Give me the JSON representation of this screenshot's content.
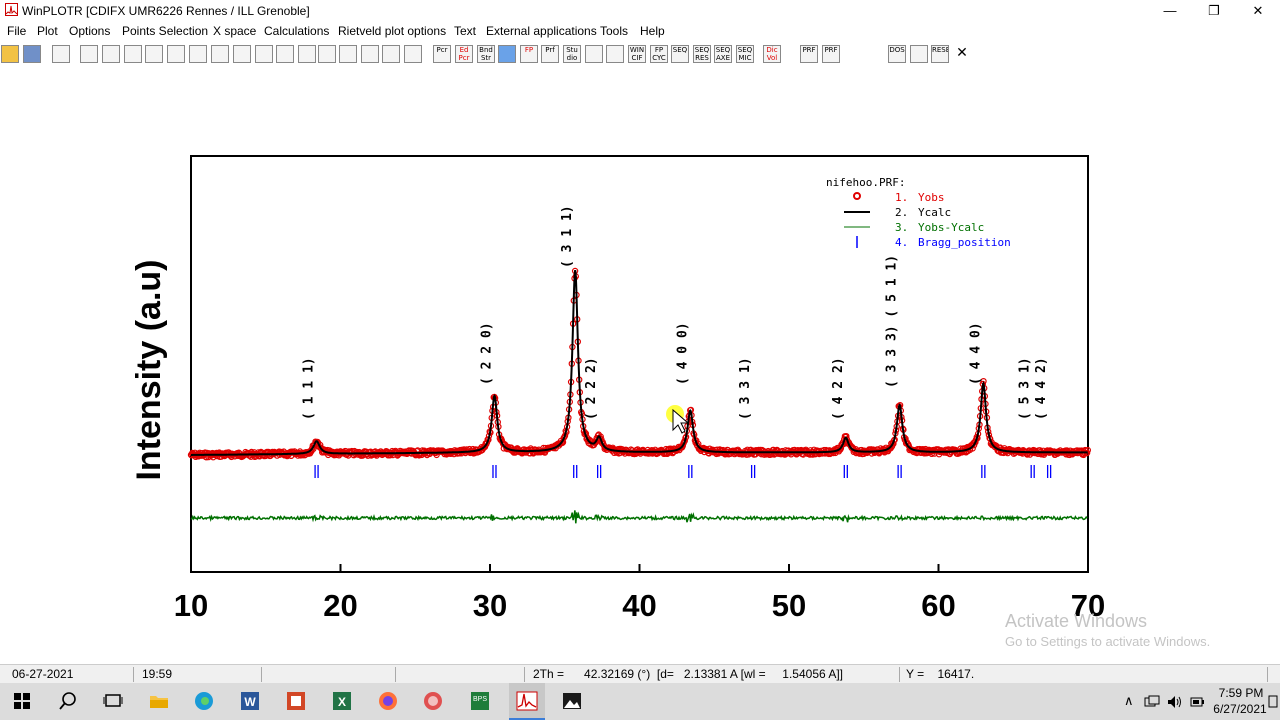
{
  "window": {
    "title": "WinPLOTR [CDIFX UMR6226 Rennes / ILL Grenoble]",
    "minimize_glyph": "—",
    "maximize_glyph": "❐",
    "close_glyph": "✕"
  },
  "menu": {
    "items": [
      "File",
      "Plot",
      "Options",
      "Points Selection",
      "X space",
      "Calculations",
      "Rietveld plot options",
      "Text",
      "External applications",
      "Tools",
      "Help"
    ]
  },
  "toolbar": {
    "labels": [
      "",
      "",
      "",
      "",
      "",
      "",
      "",
      "",
      "",
      "",
      "",
      "",
      "",
      "",
      "",
      "",
      "",
      "",
      "",
      "",
      "Pcr",
      "Ed Pcr",
      "Bnd Str",
      "",
      "FP",
      "Prf",
      "Stu dio",
      "",
      "",
      "WIN CIF",
      "FP CYC",
      "SEQ",
      "SEQ RES",
      "SEQ AXE",
      "SEQ MIC",
      "Dic Vol",
      "PRF",
      "PRF",
      "",
      "DOS",
      "",
      "RESET",
      "✕"
    ],
    "icon_names": [
      "open-folder-icon",
      "save-icon",
      "print-icon",
      "zoom-page-icon",
      "zoom-icon",
      "move-up-down-icon",
      "fit-window-icon",
      "left-red-arrow-icon",
      "left-red-arrow-2-icon",
      "right-red-arrow-icon",
      "right-red-arrow-2-icon",
      "skip-end-icon",
      "left-right-icon",
      "skip-both-icon",
      "compress-x-icon",
      "expand-y-icon",
      "compress-y-icon",
      "up-red-arrow-icon",
      "down-red-arrow-icon",
      "",
      "pcr-icon",
      "edit-pcr-icon",
      "bond-str-icon",
      "globe-icon",
      "fullprof-icon",
      "prf-icon",
      "studio-icon",
      "grid-icon",
      "checkbox-icon",
      "win-cif-icon",
      "fp-cyc-icon",
      "seq-icon",
      "seq-res-icon",
      "seq-axe-icon",
      "seq-mic-icon",
      "dicvol-icon",
      "prf-minus-icon",
      "prf-plus-icon",
      "",
      "dos-icon",
      "image-icon",
      "reset-icon",
      "close-plot-icon"
    ]
  },
  "chart_data": {
    "type": "line",
    "file_label": "nifehoo.PRF:",
    "ylabel": "Intensity (a.u)",
    "x_ticks": [
      10,
      20,
      30,
      40,
      50,
      60,
      70
    ],
    "xlim": [
      10,
      70
    ],
    "legend": [
      {
        "index": "1.",
        "name": "Yobs",
        "color": "#e00000",
        "marker": "circle"
      },
      {
        "index": "2.",
        "name": "Ycalc",
        "color": "#000000",
        "marker": "line"
      },
      {
        "index": "3.",
        "name": "Yobs-Ycalc",
        "color": "#007000",
        "marker": "thin-line"
      },
      {
        "index": "4.",
        "name": "Bragg_position",
        "color": "#0000ff",
        "marker": "tick"
      }
    ],
    "background_level": 30,
    "peaks": [
      {
        "pos": 18.4,
        "height": 70,
        "width": 0.25
      },
      {
        "pos": 30.3,
        "height": 310,
        "width": 0.22
      },
      {
        "pos": 35.7,
        "height": 1000,
        "width": 0.22
      },
      {
        "pos": 37.3,
        "height": 70,
        "width": 0.22
      },
      {
        "pos": 43.4,
        "height": 230,
        "width": 0.22
      },
      {
        "pos": 53.8,
        "height": 80,
        "width": 0.22
      },
      {
        "pos": 57.4,
        "height": 260,
        "width": 0.22
      },
      {
        "pos": 63.0,
        "height": 380,
        "width": 0.22
      }
    ],
    "bragg_positions": [
      18.4,
      30.3,
      35.7,
      37.3,
      43.4,
      47.6,
      53.8,
      57.4,
      63.0,
      66.3,
      67.4
    ],
    "hkl_labels": [
      {
        "text": "( 1 1 1)",
        "x": 18.4,
        "level": "low"
      },
      {
        "text": "( 2 2 0)",
        "x": 30.3,
        "level": "mid"
      },
      {
        "text": "( 3 1 1)",
        "x": 35.7,
        "level": "top"
      },
      {
        "text": "( 2 2 2)",
        "x": 37.3,
        "level": "low"
      },
      {
        "text": "( 4 0 0)",
        "x": 43.4,
        "level": "mid"
      },
      {
        "text": "( 3 3 1)",
        "x": 47.6,
        "level": "low"
      },
      {
        "text": "( 4 2 2)",
        "x": 53.8,
        "level": "low"
      },
      {
        "text": "( 3 3 3) ( 5 1 1)",
        "x": 57.4,
        "level": "high"
      },
      {
        "text": "( 4 4 0)",
        "x": 63.0,
        "level": "mid"
      },
      {
        "text": "( 5 3 1)",
        "x": 66.3,
        "level": "low"
      },
      {
        "text": "( 4 4 2)",
        "x": 67.4,
        "level": "low"
      }
    ]
  },
  "status": {
    "date": "06-27-2021",
    "time": "19:59",
    "twotheta": "2Th =      42.32169 (°)  [d=   2.13381 A [wl =     1.54056 A]]",
    "y": "Y =    16417."
  },
  "watermark": {
    "title": "Activate Windows",
    "subtitle": "Go to Settings to activate Windows."
  },
  "taskbar": {
    "time": "7:59 PM",
    "date": "6/27/2021",
    "tray_up_glyph": "∧"
  },
  "colors": {
    "yobs": "#e00000",
    "ycalc": "#000000",
    "diff": "#007000",
    "bragg": "#0000ff",
    "legend_text_red": "#e00000",
    "legend_text_green": "#007000",
    "legend_text_blue": "#0000ff"
  }
}
